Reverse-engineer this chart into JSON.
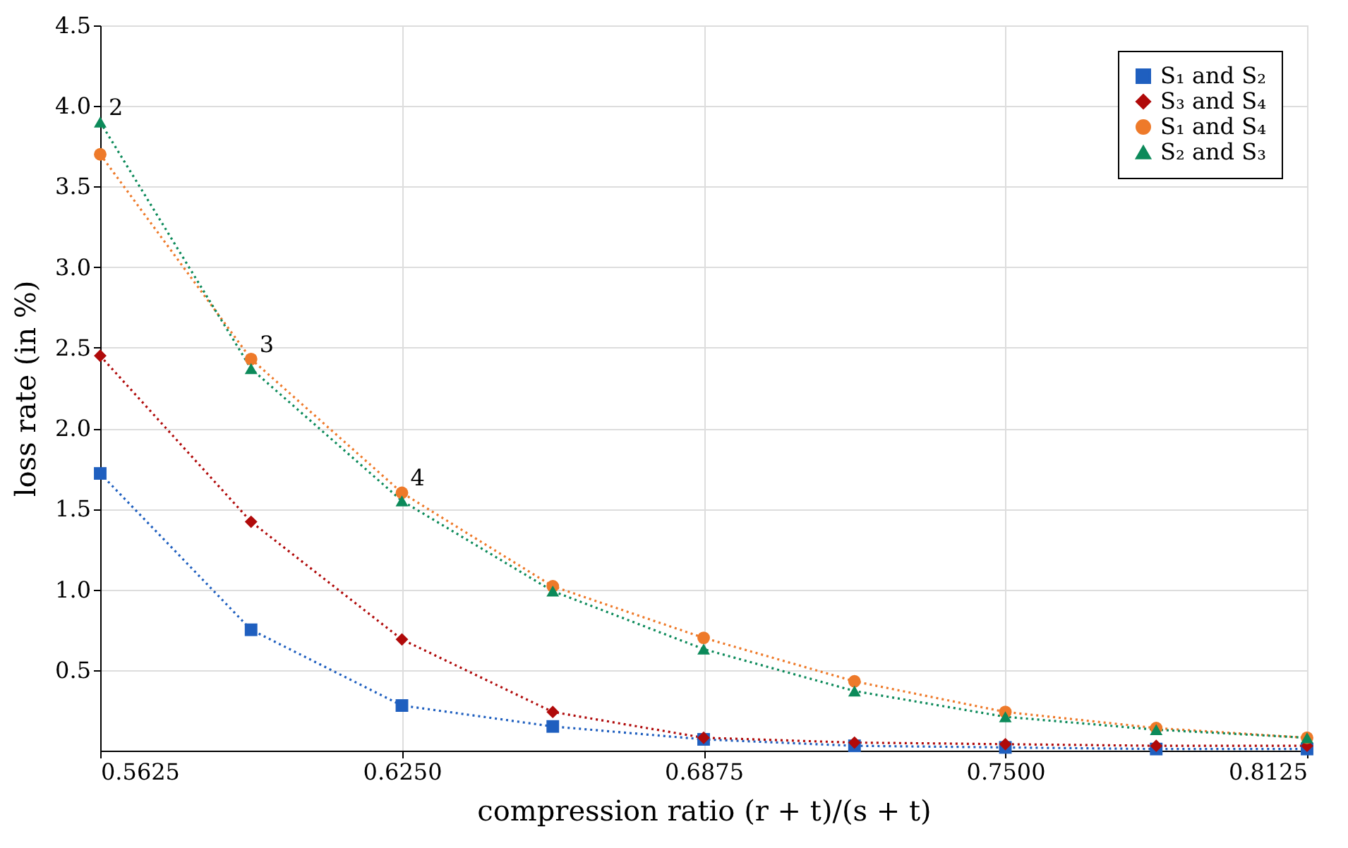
{
  "chart_data": {
    "type": "line",
    "xlabel": "compression ratio (r + t)/(s + t)",
    "ylabel": "loss rate (in %)",
    "x": [
      0.5625,
      0.59375,
      0.625,
      0.65625,
      0.6875,
      0.71875,
      0.75,
      0.78125,
      0.8125
    ],
    "series": [
      {
        "name": "S₁ and S₂",
        "color": "#1f5fbf",
        "marker": "square",
        "values": [
          1.72,
          0.75,
          0.28,
          0.15,
          0.07,
          0.03,
          0.02,
          0.01,
          0.01
        ]
      },
      {
        "name": "S₃ and S₄",
        "color": "#b00a0a",
        "marker": "diamond",
        "values": [
          2.45,
          1.42,
          0.69,
          0.24,
          0.08,
          0.05,
          0.04,
          0.03,
          0.03
        ]
      },
      {
        "name": "S₁ and S₄",
        "color": "#ee7a2a",
        "marker": "circle",
        "values": [
          3.7,
          2.43,
          1.6,
          1.02,
          0.7,
          0.43,
          0.24,
          0.14,
          0.08
        ]
      },
      {
        "name": "S₂ and S₃",
        "color": "#0c8a5a",
        "marker": "triangle",
        "values": [
          3.9,
          2.37,
          1.55,
          0.99,
          0.63,
          0.37,
          0.21,
          0.13,
          0.08
        ]
      }
    ],
    "line_style": "dotted",
    "xlim": [
      0.5625,
      0.8125
    ],
    "xticks": [
      {
        "value": 0.5625,
        "label": "0.5625"
      },
      {
        "value": 0.625,
        "label": "0.6250"
      },
      {
        "value": 0.6875,
        "label": "0.6875"
      },
      {
        "value": 0.75,
        "label": "0.7500"
      },
      {
        "value": 0.8125,
        "label": "0.8125"
      }
    ],
    "ylim": [
      0,
      4.5
    ],
    "yticks": [
      0.5,
      {
        "value": 1,
        "label": "1.0"
      },
      1.5,
      {
        "value": 2,
        "label": "2.0"
      },
      2.5,
      {
        "value": 3,
        "label": "3.0"
      },
      3.5,
      {
        "value": 4,
        "label": "4.0"
      },
      4.5
    ],
    "grid": true,
    "legend": "top right",
    "annotations": [
      {
        "text": "2",
        "x": 0.5625,
        "y": 3.9
      },
      {
        "text": "3",
        "x": 0.59375,
        "y": 2.43
      },
      {
        "text": "4",
        "x": 0.625,
        "y": 1.6
      }
    ]
  }
}
